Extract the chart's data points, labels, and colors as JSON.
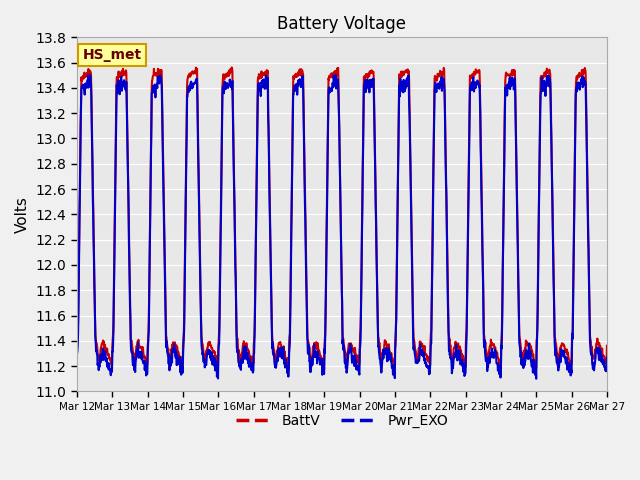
{
  "title": "Battery Voltage",
  "ylabel": "Volts",
  "ylim": [
    11.0,
    13.8
  ],
  "yticks": [
    11.0,
    11.2,
    11.4,
    11.6,
    11.8,
    12.0,
    12.2,
    12.4,
    12.6,
    12.8,
    13.0,
    13.2,
    13.4,
    13.6,
    13.8
  ],
  "xtick_labels": [
    "Mar 12",
    "Mar 13",
    "Mar 14",
    "Mar 15",
    "Mar 16",
    "Mar 17",
    "Mar 18",
    "Mar 19",
    "Mar 20",
    "Mar 21",
    "Mar 22",
    "Mar 23",
    "Mar 24",
    "Mar 25",
    "Mar 26",
    "Mar 27"
  ],
  "line1_color": "#cc0000",
  "line2_color": "#0000cc",
  "line1_label": "BattV",
  "line2_label": "Pwr_EXO",
  "annotation_text": "HS_met",
  "annotation_bg": "#ffff99",
  "annotation_border": "#cc9900",
  "bg_color": "#e8e8e8",
  "fig_color": "#f0f0f0",
  "linewidth": 1.5,
  "num_days": 15,
  "points_per_day": 96
}
